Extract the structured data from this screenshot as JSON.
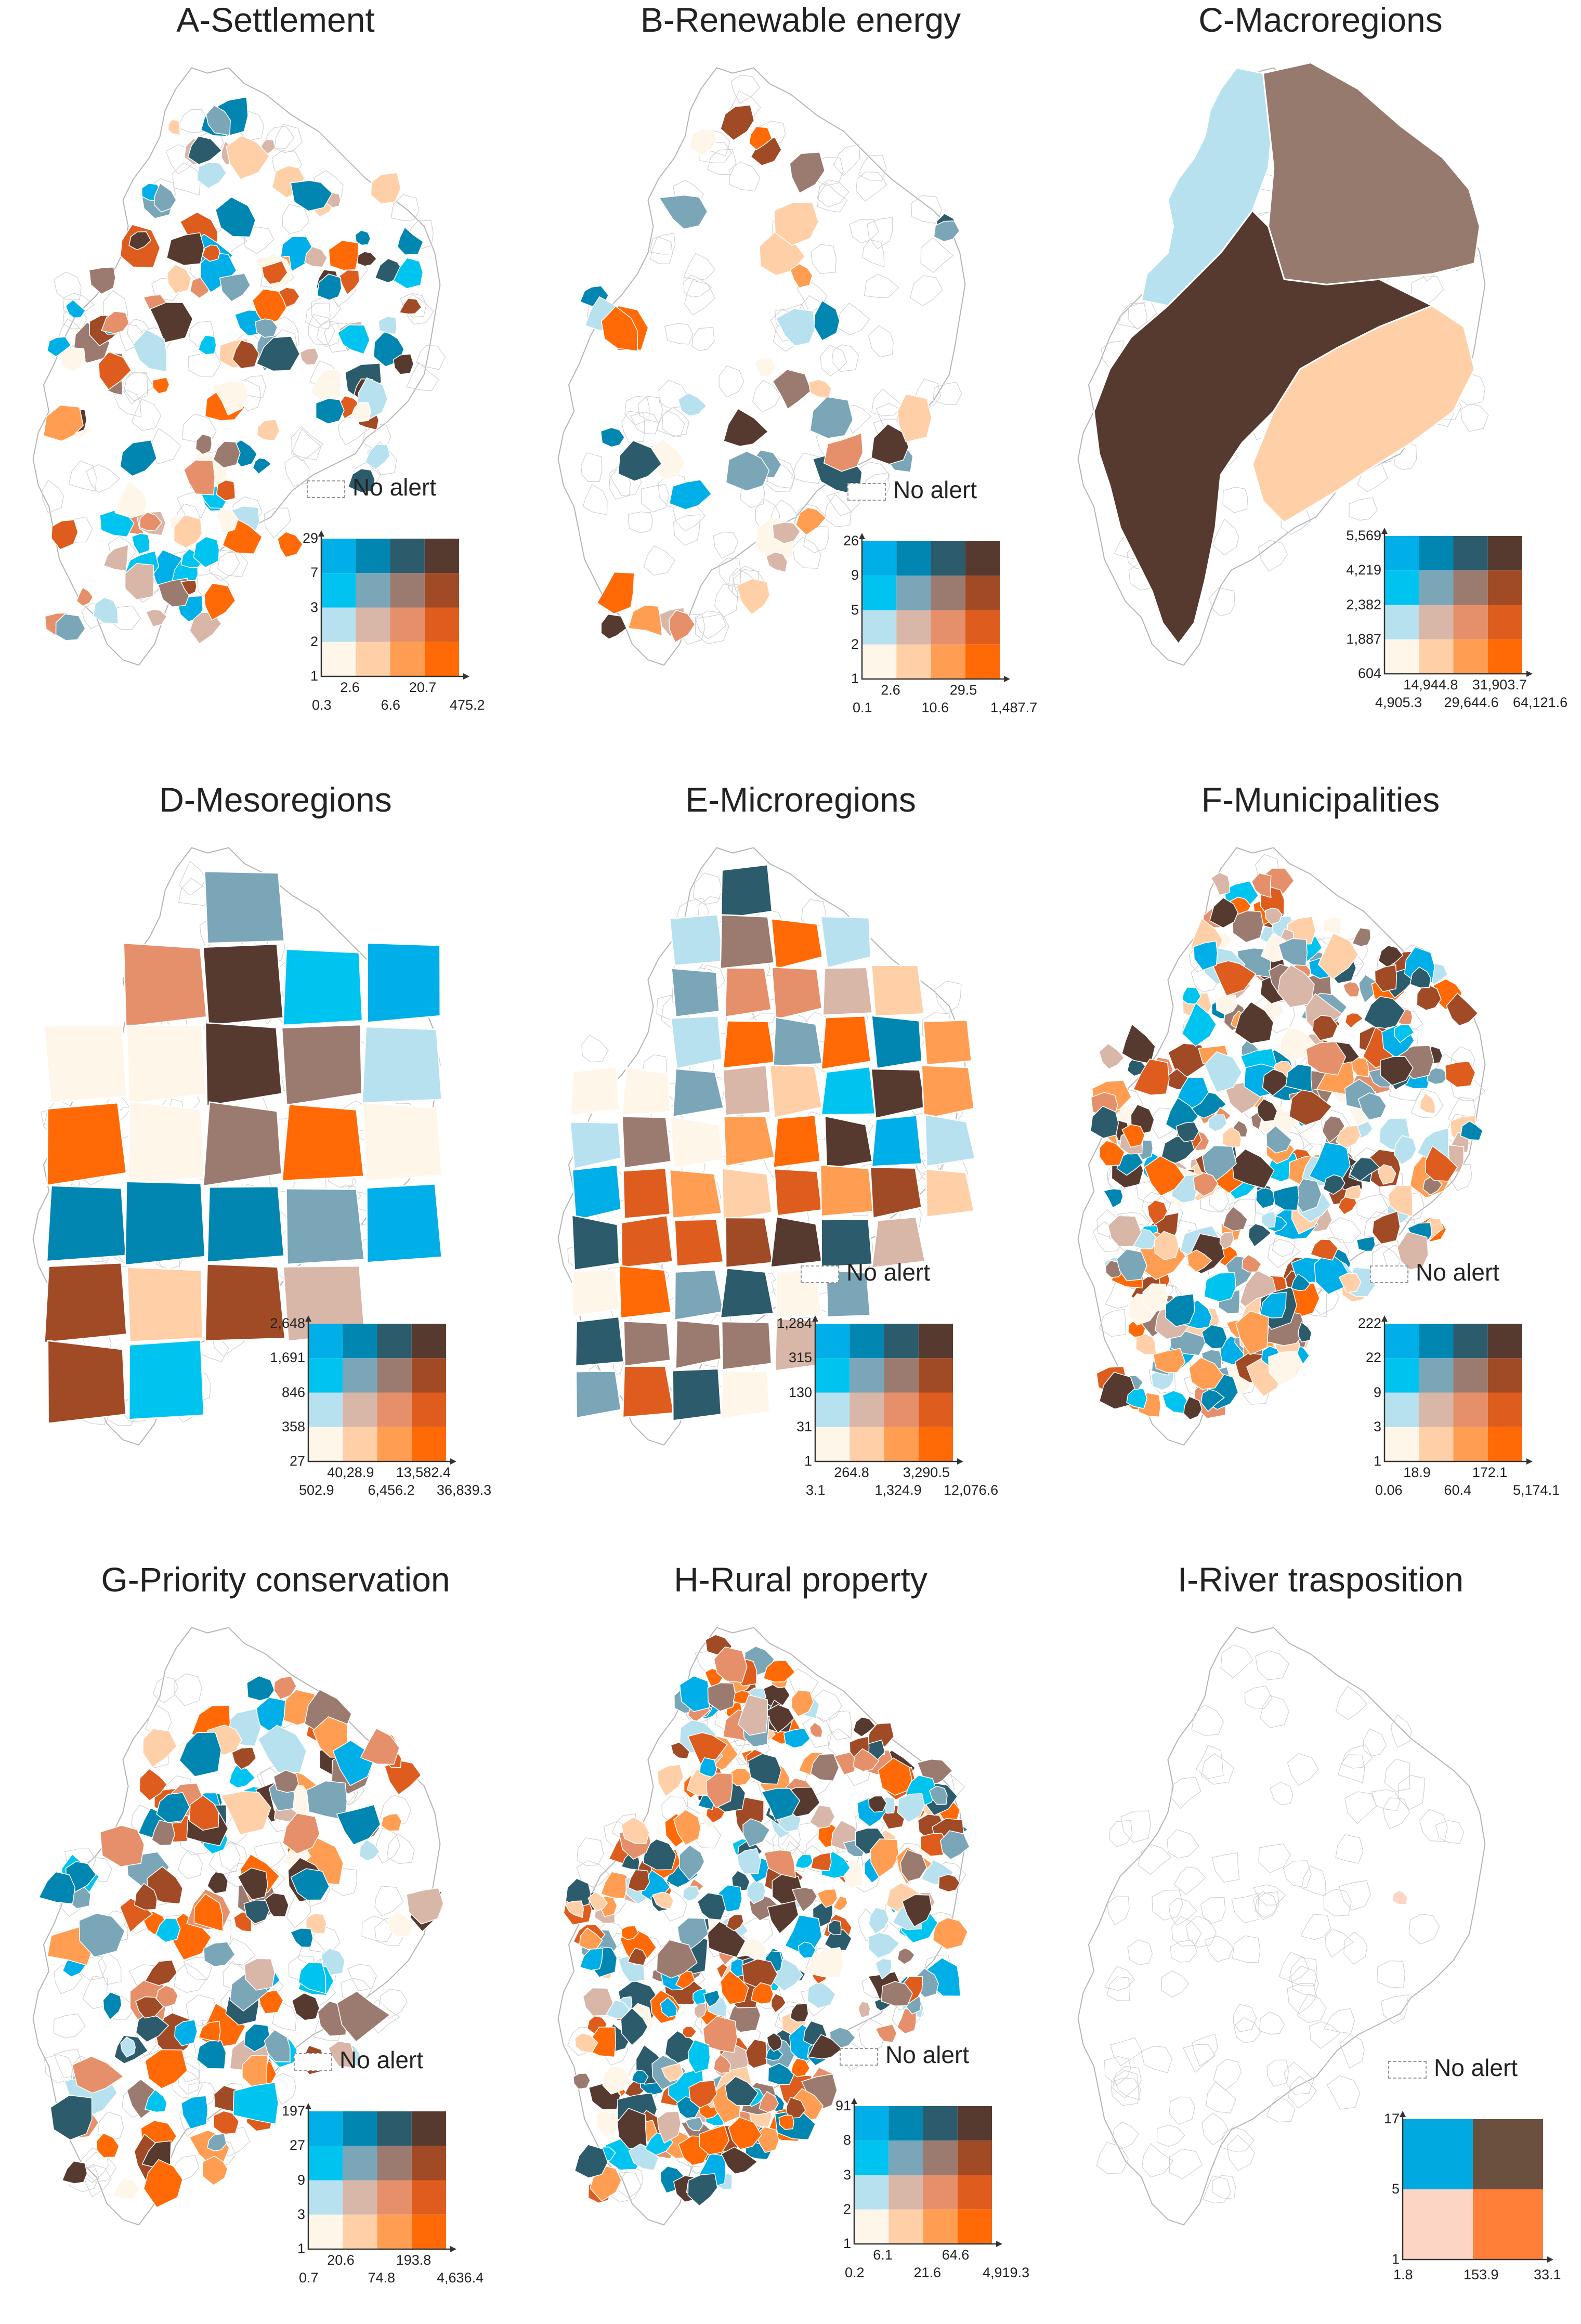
{
  "no_alert_label": "No alert",
  "palette": {
    "grid4": [
      [
        "#ffffff00"
      ]
    ],
    "cells4": [
      [
        "#00aee8",
        "#0086b0",
        "#2c5b6b",
        "#563a2f"
      ],
      [
        "#00c4f0",
        "#7aa6b8",
        "#9b7b70",
        "#a14a26"
      ],
      [
        "#b7e1ef",
        "#d8b6a8",
        "#e5906a",
        "#de5d1e"
      ],
      [
        "#fff6ea",
        "#ffcfa8",
        "#ff9e52",
        "#ff6a06"
      ]
    ],
    "cells2": [
      [
        "#00a9df",
        "#6b5040"
      ],
      [
        "#fdd5c4",
        "#ff7f39"
      ]
    ]
  },
  "panels": [
    {
      "title": "A-Settlement",
      "no_alert": true,
      "y_ticks": [
        "29",
        "7",
        "3",
        "2",
        "1"
      ],
      "x_ticks_upper": [
        "2.6",
        "20.7"
      ],
      "x_ticks_lower": [
        "0.3",
        "6.6",
        "475.2"
      ]
    },
    {
      "title": "B-Renewable energy",
      "no_alert": true,
      "y_ticks": [
        "26",
        "9",
        "5",
        "2",
        "1"
      ],
      "x_ticks_upper": [
        "2.6",
        "29.5"
      ],
      "x_ticks_lower": [
        "0.1",
        "10.6",
        "1,487.7"
      ]
    },
    {
      "title": "C-Macroregions",
      "no_alert": false,
      "y_ticks": [
        "5,569",
        "4,219",
        "2,382",
        "1,887",
        "604"
      ],
      "x_ticks_upper": [
        "14,944.8",
        "31,903.7"
      ],
      "x_ticks_lower": [
        "4,905.3",
        "29,644.6",
        "64,121.6"
      ]
    },
    {
      "title": "D-Mesoregions",
      "no_alert": false,
      "y_ticks": [
        "2,648",
        "1,691",
        "846",
        "358",
        "27"
      ],
      "x_ticks_upper": [
        "40,28.9",
        "13,582.4"
      ],
      "x_ticks_lower": [
        "502.9",
        "6,456.2",
        "36,839.3"
      ]
    },
    {
      "title": "E-Microregions",
      "no_alert": true,
      "y_ticks": [
        "1,284",
        "315",
        "130",
        "31",
        "1"
      ],
      "x_ticks_upper": [
        "264.8",
        "3,290.5"
      ],
      "x_ticks_lower": [
        "3.1",
        "1,324.9",
        "12,076.6"
      ]
    },
    {
      "title": "F-Municipalities",
      "no_alert": true,
      "y_ticks": [
        "222",
        "22",
        "9",
        "3",
        "1"
      ],
      "x_ticks_upper": [
        "18.9",
        "172.1"
      ],
      "x_ticks_lower": [
        "0.06",
        "60.4",
        "5,174.1"
      ]
    },
    {
      "title": "G-Priority conservation",
      "no_alert": true,
      "y_ticks": [
        "197",
        "27",
        "9",
        "3",
        "1"
      ],
      "x_ticks_upper": [
        "20.6",
        "193.8"
      ],
      "x_ticks_lower": [
        "0.7",
        "74.8",
        "4,636.4"
      ]
    },
    {
      "title": "H-Rural property",
      "no_alert": true,
      "y_ticks": [
        "91",
        "8",
        "3",
        "2",
        "1"
      ],
      "x_ticks_upper": [
        "6.1",
        "64.6"
      ],
      "x_ticks_lower": [
        "0.2",
        "21.6",
        "4,919.3"
      ]
    },
    {
      "title": "I-River trasposition",
      "no_alert": true,
      "y_ticks": [
        "17",
        "5",
        "1"
      ],
      "x_ticks_upper": [],
      "x_ticks_lower": [
        "1.8",
        "153.9",
        "33.1"
      ]
    }
  ]
}
